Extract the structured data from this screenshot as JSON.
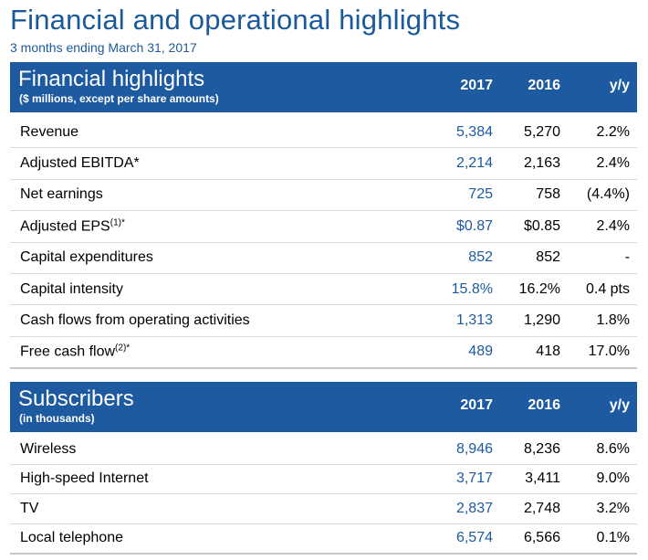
{
  "title": "Financial and operational highlights",
  "subtitle": "3 months ending March 31, 2017",
  "financial": {
    "title": "Financial highlights",
    "subtitle": "($ millions, except per share amounts)",
    "columns": [
      "2017",
      "2016",
      "y/y"
    ],
    "rows": [
      {
        "label": "Revenue",
        "sup": "",
        "v2017": "5,384",
        "v2016": "5,270",
        "yy": "2.2%"
      },
      {
        "label": "Adjusted EBITDA*",
        "sup": "",
        "v2017": "2,214",
        "v2016": "2,163",
        "yy": "2.4%"
      },
      {
        "label": "Net earnings",
        "sup": "",
        "v2017": "725",
        "v2016": "758",
        "yy": "(4.4%)"
      },
      {
        "label": "Adjusted EPS",
        "sup": "(1)*",
        "v2017": "$0.87",
        "v2016": "$0.85",
        "yy": "2.4%"
      },
      {
        "label": "Capital expenditures",
        "sup": "",
        "v2017": "852",
        "v2016": "852",
        "yy": "-"
      },
      {
        "label": "Capital intensity",
        "sup": "",
        "v2017": "15.8%",
        "v2016": "16.2%",
        "yy": "0.4 pts"
      },
      {
        "label": "Cash flows from operating activities",
        "sup": "",
        "v2017": "1,313",
        "v2016": "1,290",
        "yy": "1.8%"
      },
      {
        "label": "Free cash flow",
        "sup": "(2)*",
        "v2017": "489",
        "v2016": "418",
        "yy": "17.0%"
      }
    ]
  },
  "subscribers": {
    "title": "Subscribers",
    "subtitle": "(in thousands)",
    "columns": [
      "2017",
      "2016",
      "y/y"
    ],
    "rows": [
      {
        "label": "Wireless",
        "sup": "",
        "v2017": "8,946",
        "v2016": "8,236",
        "yy": "8.6%"
      },
      {
        "label": "High-speed Internet",
        "sup": "",
        "v2017": "3,717",
        "v2016": "3,411",
        "yy": "9.0%"
      },
      {
        "label": "TV",
        "sup": "",
        "v2017": "2,837",
        "v2016": "2,748",
        "yy": "3.2%"
      },
      {
        "label": "Local telephone",
        "sup": "",
        "v2017": "6,574",
        "v2016": "6,566",
        "yy": "0.1%"
      }
    ]
  },
  "colors": {
    "accent": "#1d5aa0",
    "title": "#1a5a9b"
  }
}
